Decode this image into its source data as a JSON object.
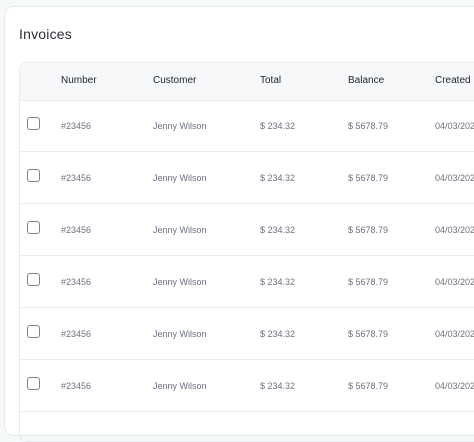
{
  "page": {
    "title": "Invoices"
  },
  "table": {
    "columns": [
      "Number",
      "Customer",
      "Total",
      "Balance",
      "Created"
    ],
    "rows": [
      {
        "number": "#23456",
        "customer": "Jenny Wilson",
        "total": "$ 234.32",
        "balance": "$ 5678.79",
        "created": "04/03/202"
      },
      {
        "number": "#23456",
        "customer": "Jenny Wilson",
        "total": "$ 234.32",
        "balance": "$ 5678.79",
        "created": "04/03/202"
      },
      {
        "number": "#23456",
        "customer": "Jenny Wilson",
        "total": "$ 234.32",
        "balance": "$ 5678.79",
        "created": "04/03/202"
      },
      {
        "number": "#23456",
        "customer": "Jenny Wilson",
        "total": "$ 234.32",
        "balance": "$ 5678.79",
        "created": "04/03/202"
      },
      {
        "number": "#23456",
        "customer": "Jenny Wilson",
        "total": "$ 234.32",
        "balance": "$ 5678.79",
        "created": "04/03/202"
      },
      {
        "number": "#23456",
        "customer": "Jenny Wilson",
        "total": "$ 234.32",
        "balance": "$ 5678.79",
        "created": "04/03/202"
      }
    ]
  },
  "colors": {
    "page_background": "#f6f9f9",
    "panel_background": "#ffffff",
    "header_background": "#f7f8fa",
    "border": "#e7eaee",
    "text_primary": "#1f2328",
    "text_secondary": "#6b7280"
  }
}
